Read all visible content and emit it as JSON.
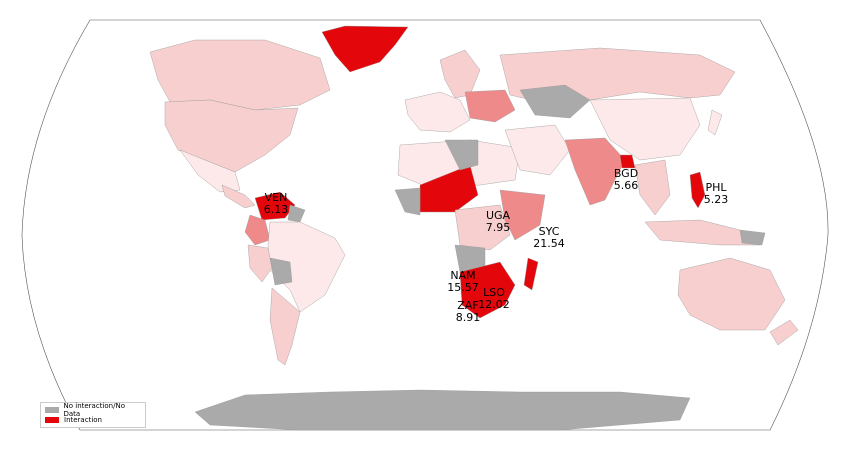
{
  "legend": {
    "items": [
      {
        "label": "No interaction/No Data",
        "color": "#aaaaaa"
      },
      {
        "label": "Interaction",
        "color": "#e3070b"
      }
    ]
  },
  "annotations": [
    {
      "code": "VEN",
      "value": "6.13"
    },
    {
      "code": "BGD",
      "value": "5.66"
    },
    {
      "code": "PHL",
      "value": "5.23"
    },
    {
      "code": "UGA",
      "value": "7.95"
    },
    {
      "code": "SYC",
      "value": "21.54"
    },
    {
      "code": "NAM",
      "value": "15.57"
    },
    {
      "code": "LSO",
      "value": "12.02"
    },
    {
      "code": "ZAF",
      "value": "8.91"
    }
  ],
  "colors": {
    "ocean": "#ffffff",
    "nodata": "#aaaaaa",
    "high": "#e3070b",
    "mid": "#ef8a8a",
    "light": "#f8cfcf",
    "faint": "#fde9e9",
    "antarctica": "#aaaaaa"
  }
}
